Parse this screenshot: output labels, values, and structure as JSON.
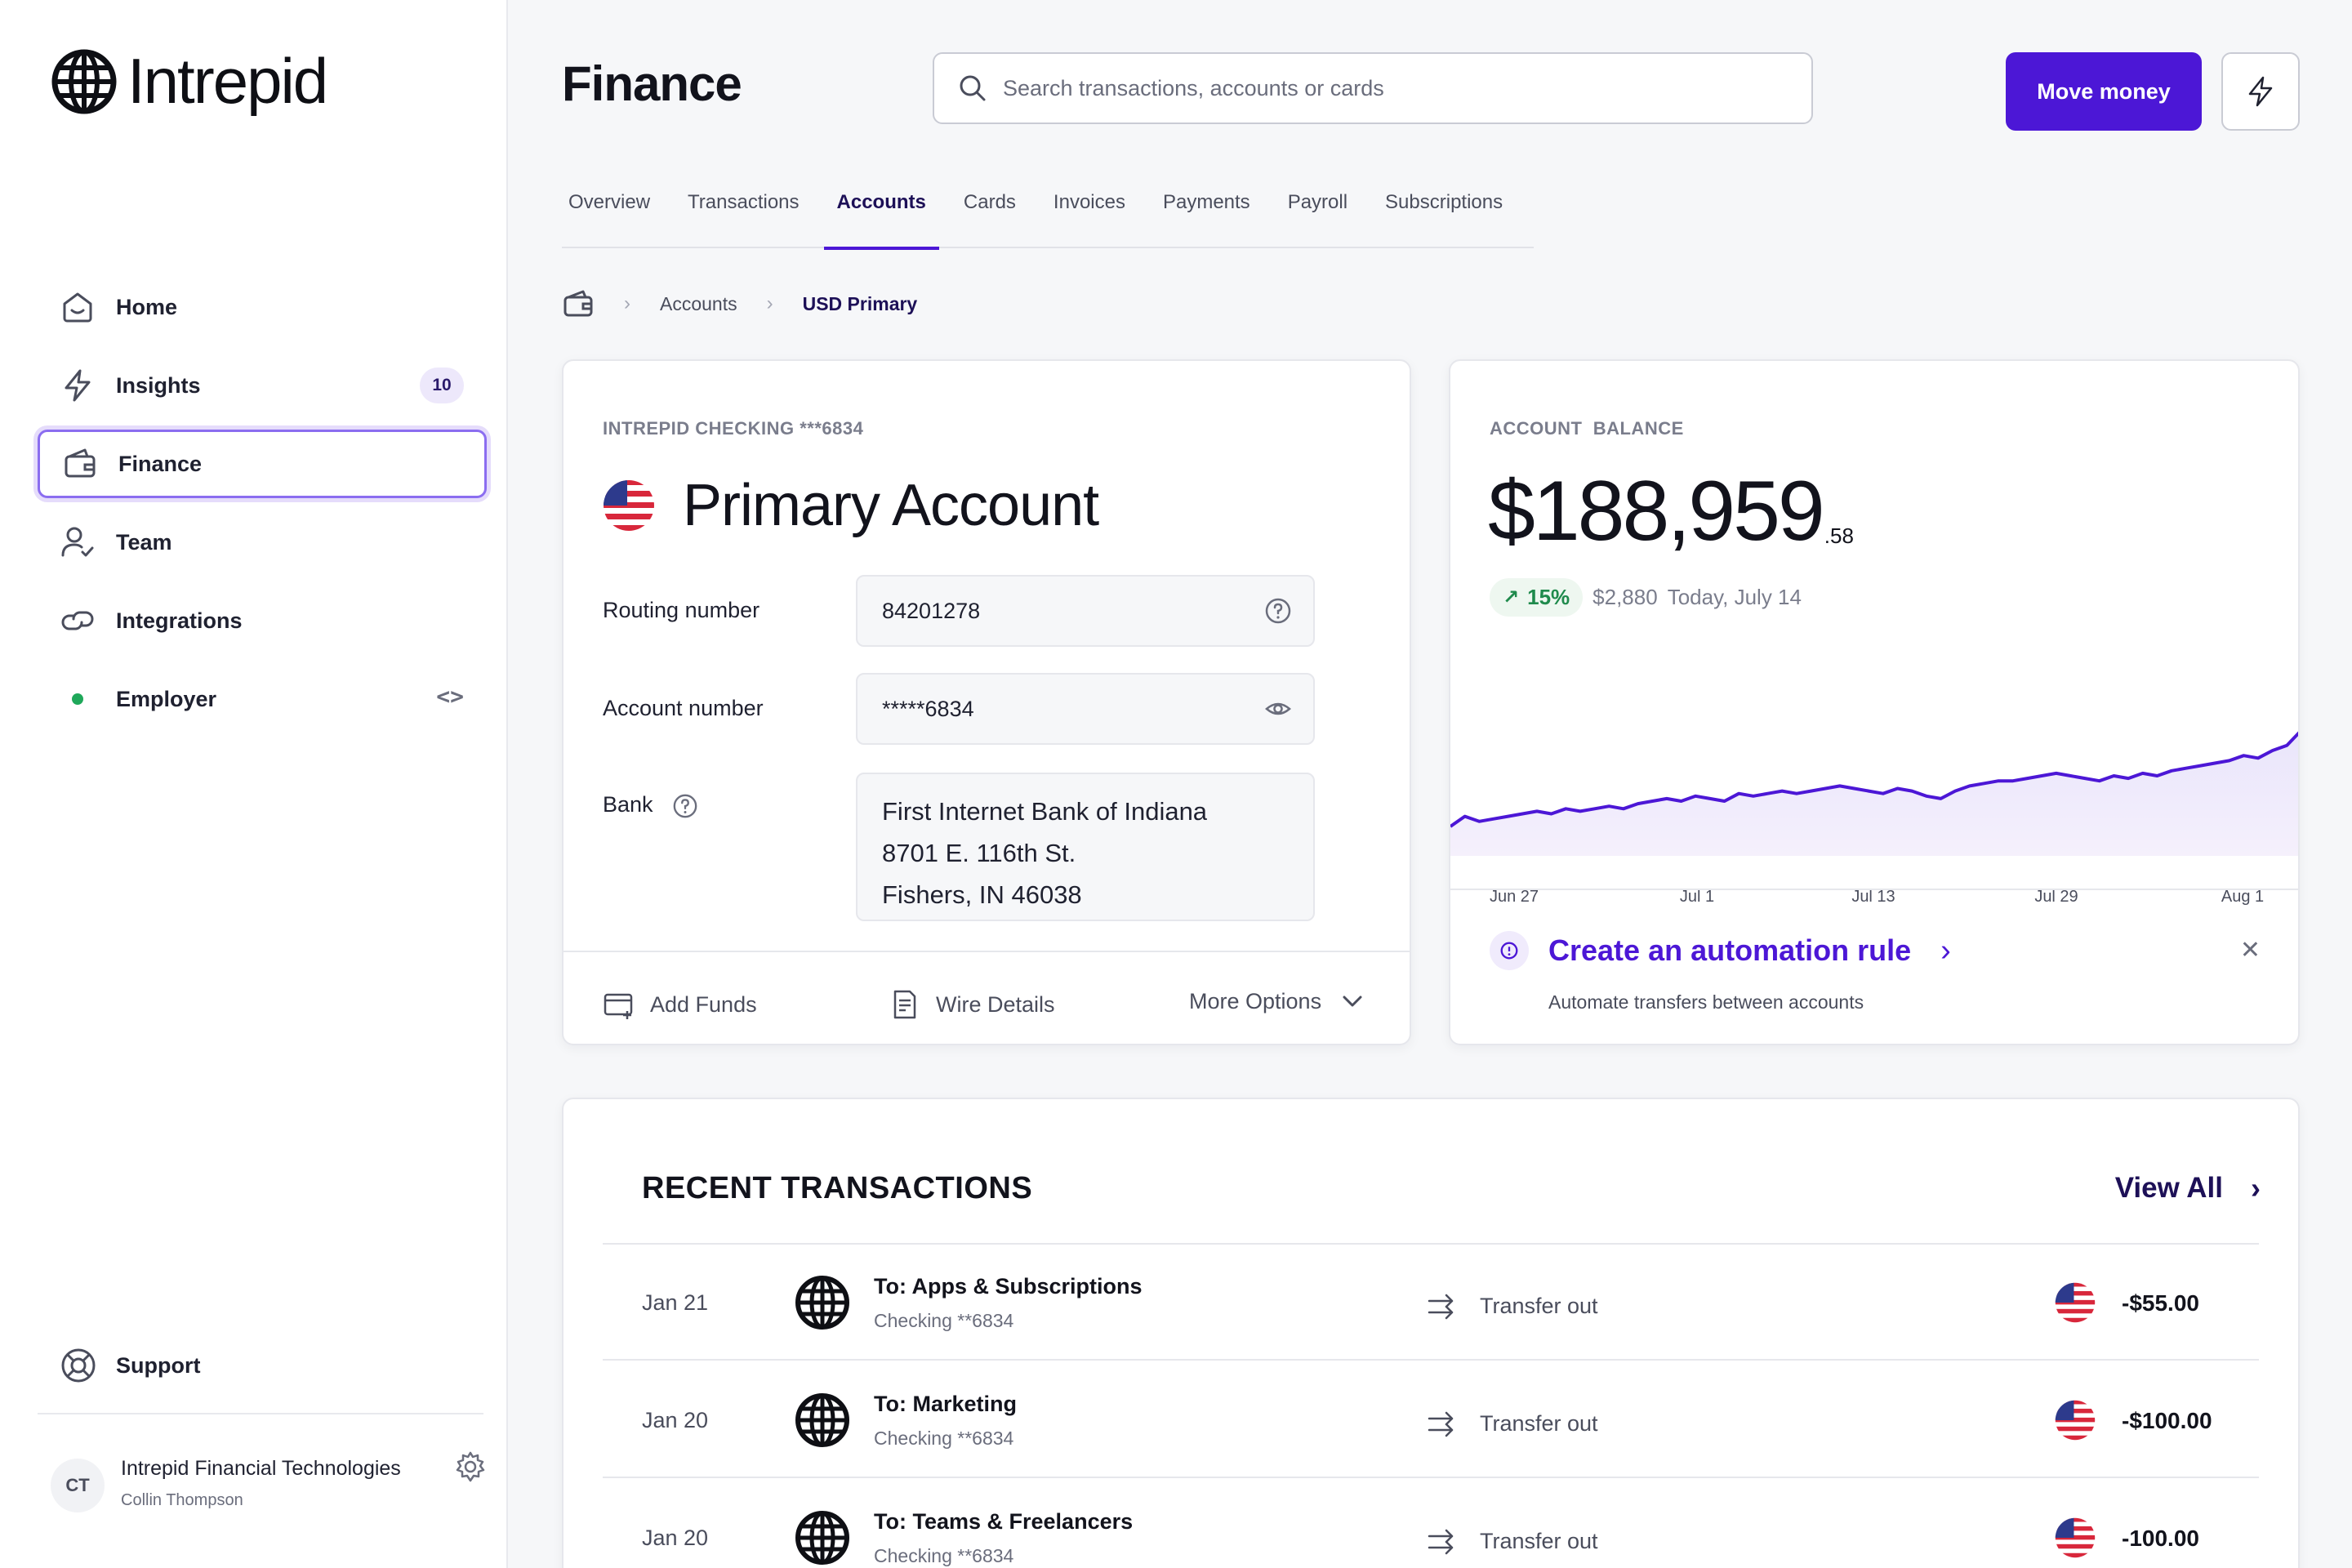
{
  "brand": {
    "name": "Intrepid"
  },
  "sidebar": {
    "items": [
      {
        "label": "Home",
        "icon": "home-icon"
      },
      {
        "label": "Insights",
        "icon": "bolt-icon",
        "badge": "10"
      },
      {
        "label": "Finance",
        "icon": "wallet-icon",
        "active": true
      },
      {
        "label": "Team",
        "icon": "user-check-icon"
      },
      {
        "label": "Integrations",
        "icon": "link-icon"
      },
      {
        "label": "Employer",
        "icon": "code-icon"
      }
    ],
    "support_label": "Support",
    "profile": {
      "initials": "CT",
      "org": "Intrepid Financial Technologies",
      "user": "Collin Thompson"
    }
  },
  "header": {
    "title": "Finance",
    "search_placeholder": "Search transactions, accounts or cards",
    "move_money_label": "Move money"
  },
  "tabs": [
    "Overview",
    "Transactions",
    "Accounts",
    "Cards",
    "Invoices",
    "Payments",
    "Payroll",
    "Subscriptions"
  ],
  "active_tab": "Accounts",
  "breadcrumb": {
    "parent": "Accounts",
    "current": "USD Primary"
  },
  "account": {
    "eyebrow": "INTREPID CHECKING ***6834",
    "name": "Primary Account",
    "routing_label": "Routing number",
    "routing_value": "84201278",
    "account_label": "Account number",
    "account_value": "*****6834",
    "bank_label": "Bank",
    "bank_lines": [
      "First Internet Bank of Indiana",
      "8701 E. 116th St.",
      "Fishers, IN 46038"
    ],
    "actions": {
      "add_funds": "Add Funds",
      "wire_details": "Wire Details",
      "more_options": "More Options"
    }
  },
  "balance": {
    "eyebrow": "ACCOUNT  BALANCE",
    "whole": "$188,959",
    "cents": ".58",
    "change_pct": "15%",
    "change_amount": "$2,880",
    "change_date": "Today, July 14",
    "automation_title": "Create an automation rule",
    "automation_sub": "Automate transfers between accounts"
  },
  "chart_data": {
    "type": "area",
    "x_tick_labels": [
      "Jun 27",
      "Jul 1",
      "Jul 13",
      "Jul 29",
      "Aug 1"
    ],
    "values": [
      40,
      44,
      42,
      43,
      44,
      45,
      46,
      45,
      47,
      46,
      47,
      48,
      47,
      49,
      50,
      51,
      50,
      52,
      51,
      50,
      53,
      52,
      53,
      54,
      53,
      54,
      55,
      56,
      55,
      54,
      53,
      55,
      54,
      52,
      51,
      54,
      56,
      57,
      58,
      58,
      59,
      60,
      61,
      60,
      59,
      58,
      60,
      59,
      61,
      60,
      62,
      63,
      64,
      65,
      66,
      68,
      67,
      70,
      72,
      78
    ],
    "grid": false,
    "line_color": "#4c17d6"
  },
  "transactions": {
    "title": "RECENT TRANSACTIONS",
    "view_all": "View All",
    "rows": [
      {
        "date": "Jan 21",
        "to": "To: Apps & Subscriptions",
        "account": "Checking **6834",
        "type": "Transfer out",
        "amount": "-$55.00"
      },
      {
        "date": "Jan 20",
        "to": "To: Marketing",
        "account": "Checking **6834",
        "type": "Transfer out",
        "amount": "-$100.00"
      },
      {
        "date": "Jan 20",
        "to": "To: Teams & Freelancers",
        "account": "Checking **6834",
        "type": "Transfer out",
        "amount": "-100.00"
      }
    ]
  }
}
